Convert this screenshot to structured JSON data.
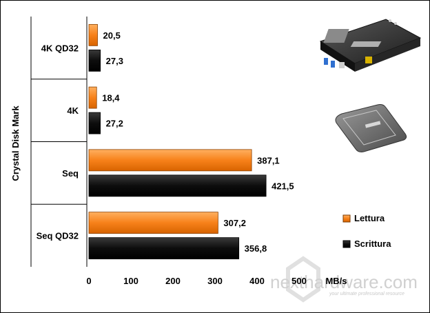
{
  "chart_data": {
    "type": "bar",
    "orientation": "horizontal",
    "ylabel": "Crystal Disk Mark",
    "xlabel": "MB/s",
    "xlim": [
      0,
      500
    ],
    "xticks": [
      "0",
      "100",
      "200",
      "300",
      "400",
      "500"
    ],
    "categories": [
      "4K QD32",
      "4K",
      "Seq",
      "Seq QD32"
    ],
    "series": [
      {
        "name": "Lettura",
        "color": "#ff8c1a",
        "values": [
          20.5,
          18.4,
          387.1,
          307.2
        ],
        "labels": [
          "20,5",
          "18,4",
          "387,1",
          "307,2"
        ]
      },
      {
        "name": "Scrittura",
        "color": "#111111",
        "values": [
          27.3,
          27.2,
          421.5,
          356.8
        ],
        "labels": [
          "27,3",
          "27,2",
          "421,5",
          "356,8"
        ]
      }
    ],
    "legend_position": "right",
    "grid": false
  },
  "decorations": {
    "motherboard_image": "motherboard-photo",
    "ssd_image": "external-ssd-photo",
    "watermark": {
      "text": "nexthardware.com",
      "tagline": "your ultimate professional resource"
    }
  }
}
